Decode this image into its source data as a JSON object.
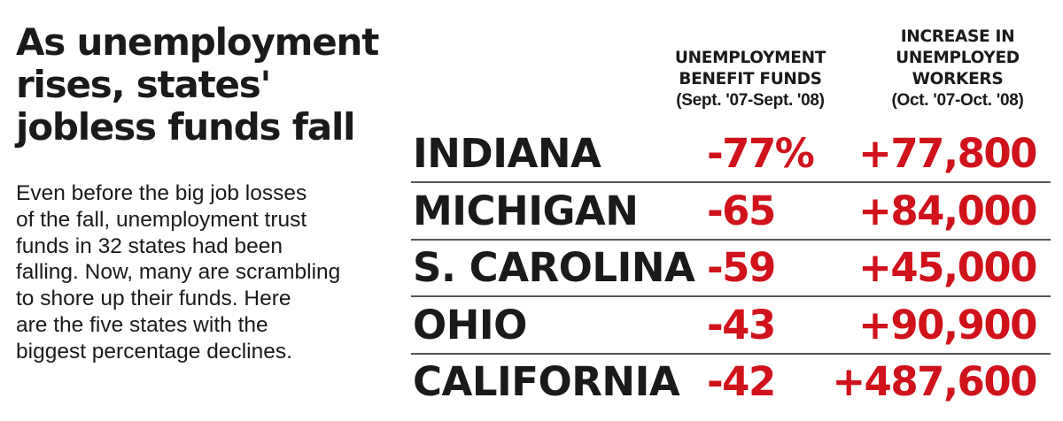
{
  "title_lines": [
    "As unemployment",
    "rises, states'",
    "jobless funds fall"
  ],
  "description_lines": [
    "Even before the big job losses",
    "of the fall, unemployment trust",
    "funds in 32 states had been",
    "falling. Now, many are scrambling",
    "to shore up their funds. Here",
    "are the five states with the",
    "biggest percentage declines."
  ],
  "colors": {
    "text": "#1a1a1a",
    "accent": "#d0121b",
    "rule": "#555555"
  },
  "chart_data": {
    "type": "table",
    "columns": [
      {
        "lines": [
          "UNEMPLOYMENT",
          "BENEFIT FUNDS"
        ],
        "period": "(Sept. '07-Sept. '08)"
      },
      {
        "lines": [
          "INCREASE IN",
          "UNEMPLOYED",
          "WORKERS"
        ],
        "period": "(Oct. '07-Oct. '08)"
      }
    ],
    "rows": [
      {
        "state": "INDIANA",
        "fund_change": "-77%",
        "fund_change_value": -77,
        "worker_increase": "+77,800",
        "worker_increase_value": 77800
      },
      {
        "state": "MICHIGAN",
        "fund_change": "-65",
        "fund_change_value": -65,
        "worker_increase": "+84,000",
        "worker_increase_value": 84000
      },
      {
        "state": "S. CAROLINA",
        "fund_change": "-59",
        "fund_change_value": -59,
        "worker_increase": "+45,000",
        "worker_increase_value": 45000
      },
      {
        "state": "OHIO",
        "fund_change": "-43",
        "fund_change_value": -43,
        "worker_increase": "+90,900",
        "worker_increase_value": 90900
      },
      {
        "state": "CALIFORNIA",
        "fund_change": "-42",
        "fund_change_value": -42,
        "worker_increase": "+487,600",
        "worker_increase_value": 487600
      }
    ]
  }
}
